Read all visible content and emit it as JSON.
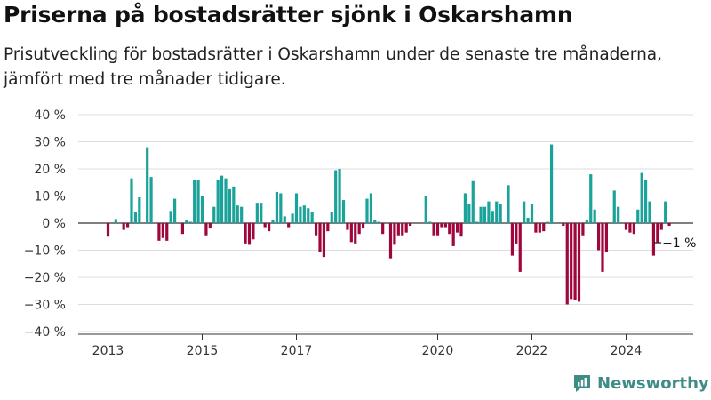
{
  "title": "Priserna på bostadsrätter sjönk i Oskarshamn",
  "subtitle": "Prisutveckling för bostadsrätter i Oskarshamn under de senaste tre månaderna, jämfört med tre månader tidigare.",
  "brand": {
    "name": "Newsworthy",
    "color": "#3d8d86"
  },
  "colors": {
    "positive": "#1aa39a",
    "negative": "#a0063e",
    "grid": "#dddddd",
    "axis": "#333333"
  },
  "chart_data": {
    "type": "bar",
    "unit": "%",
    "ylim": [
      -40,
      40
    ],
    "y_ticks": [
      40,
      30,
      20,
      10,
      0,
      -10,
      -20,
      -30,
      -40
    ],
    "y_tick_labels": [
      "40 %",
      "30 %",
      "20 %",
      "10 %",
      "0 %",
      "−10 %",
      "−20 %",
      "−30 %",
      "−40 %"
    ],
    "x_tick_labels": [
      "2013",
      "2015",
      "2017",
      "2020",
      "2022",
      "2024"
    ],
    "x_tick_dates": [
      "2013-01",
      "2015-01",
      "2017-01",
      "2020-01",
      "2022-01",
      "2024-01"
    ],
    "grid": true,
    "last_value_label": "−1 %",
    "series": [
      {
        "x": [
          "2013-01",
          "2013-02",
          "2013-03",
          "2013-04",
          "2013-05",
          "2013-06",
          "2013-07",
          "2013-08",
          "2013-09",
          "2013-10",
          "2013-11",
          "2013-12",
          "2014-01",
          "2014-02",
          "2014-03",
          "2014-04",
          "2014-05",
          "2014-06",
          "2014-07",
          "2014-08",
          "2014-09",
          "2014-10",
          "2014-11",
          "2014-12",
          "2015-01",
          "2015-02",
          "2015-03",
          "2015-04",
          "2015-05",
          "2015-06",
          "2015-07",
          "2015-08",
          "2015-09",
          "2015-10",
          "2015-11",
          "2015-12",
          "2016-01",
          "2016-02",
          "2016-03",
          "2016-04",
          "2016-05",
          "2016-06",
          "2016-07",
          "2016-08",
          "2016-09",
          "2016-10",
          "2016-11",
          "2016-12",
          "2017-01",
          "2017-02",
          "2017-03",
          "2017-04",
          "2017-05",
          "2017-06",
          "2017-07",
          "2017-08",
          "2017-09",
          "2017-10",
          "2017-11",
          "2017-12",
          "2018-01",
          "2018-02",
          "2018-03",
          "2018-04",
          "2018-05",
          "2018-06",
          "2018-07",
          "2018-08",
          "2018-09",
          "2018-10",
          "2018-11",
          "2018-12",
          "2019-01",
          "2019-02",
          "2019-03",
          "2019-04",
          "2019-05",
          "2019-06",
          "2019-07",
          "2019-08",
          "2019-09",
          "2019-10",
          "2019-11",
          "2019-12",
          "2020-01",
          "2020-02",
          "2020-03",
          "2020-04",
          "2020-05",
          "2020-06",
          "2020-07",
          "2020-08",
          "2020-09",
          "2020-10",
          "2020-11",
          "2020-12",
          "2021-01",
          "2021-02",
          "2021-03",
          "2021-04",
          "2021-05",
          "2021-06",
          "2021-07",
          "2021-08",
          "2021-09",
          "2021-10",
          "2021-11",
          "2021-12",
          "2022-01",
          "2022-02",
          "2022-03",
          "2022-04",
          "2022-05",
          "2022-06",
          "2022-07",
          "2022-08",
          "2022-09",
          "2022-10",
          "2022-11",
          "2022-12",
          "2023-01",
          "2023-02",
          "2023-03",
          "2023-04",
          "2023-05",
          "2023-06",
          "2023-07",
          "2023-08",
          "2023-09",
          "2023-10",
          "2023-11",
          "2023-12",
          "2024-01",
          "2024-02",
          "2024-03",
          "2024-04",
          "2024-05",
          "2024-06",
          "2024-07",
          "2024-08",
          "2024-09",
          "2024-10",
          "2024-11",
          "2024-12"
        ],
        "values": [
          -5,
          0,
          1.5,
          0,
          -2.5,
          -1.5,
          16.5,
          4,
          9.5,
          0,
          28,
          17,
          0,
          -6.5,
          -5.5,
          -6.5,
          4.5,
          9,
          0,
          -4,
          1,
          0.5,
          16,
          16,
          10,
          -4.5,
          -2,
          6,
          16,
          17.5,
          16.5,
          12.5,
          13.5,
          6.5,
          6,
          -7.5,
          -8,
          -6,
          7.5,
          7.5,
          -1.5,
          -3,
          1,
          11.5,
          11,
          2.5,
          -1.5,
          3.5,
          11,
          6,
          6.5,
          5.5,
          4,
          -4.5,
          -10.5,
          -12.5,
          -3,
          4,
          19.5,
          20,
          8.5,
          -2.5,
          -7,
          -7.5,
          -4,
          -2,
          9,
          11,
          1,
          0.5,
          -4,
          0,
          -13,
          -8,
          -4.5,
          -4.5,
          -3.5,
          -1,
          0,
          0,
          0,
          10,
          0.5,
          -4.5,
          -4.5,
          -1.5,
          -1.5,
          -4,
          -8.5,
          -3.5,
          -5,
          11,
          7,
          15.5,
          0.5,
          6,
          6,
          8,
          4.5,
          8,
          7,
          0,
          14,
          -12,
          -7.5,
          -18,
          8,
          2,
          7,
          -3.5,
          -3.5,
          -3,
          0.5,
          29,
          0,
          0,
          -1,
          -30,
          -28,
          -28.5,
          -29,
          -4.5,
          1,
          18,
          5,
          -10,
          -18,
          -10.5,
          0,
          12,
          6,
          0,
          -2.5,
          -3.5,
          -4,
          5,
          18.5,
          16,
          8,
          -12,
          -7,
          -2.5,
          8,
          -1
        ]
      }
    ]
  }
}
